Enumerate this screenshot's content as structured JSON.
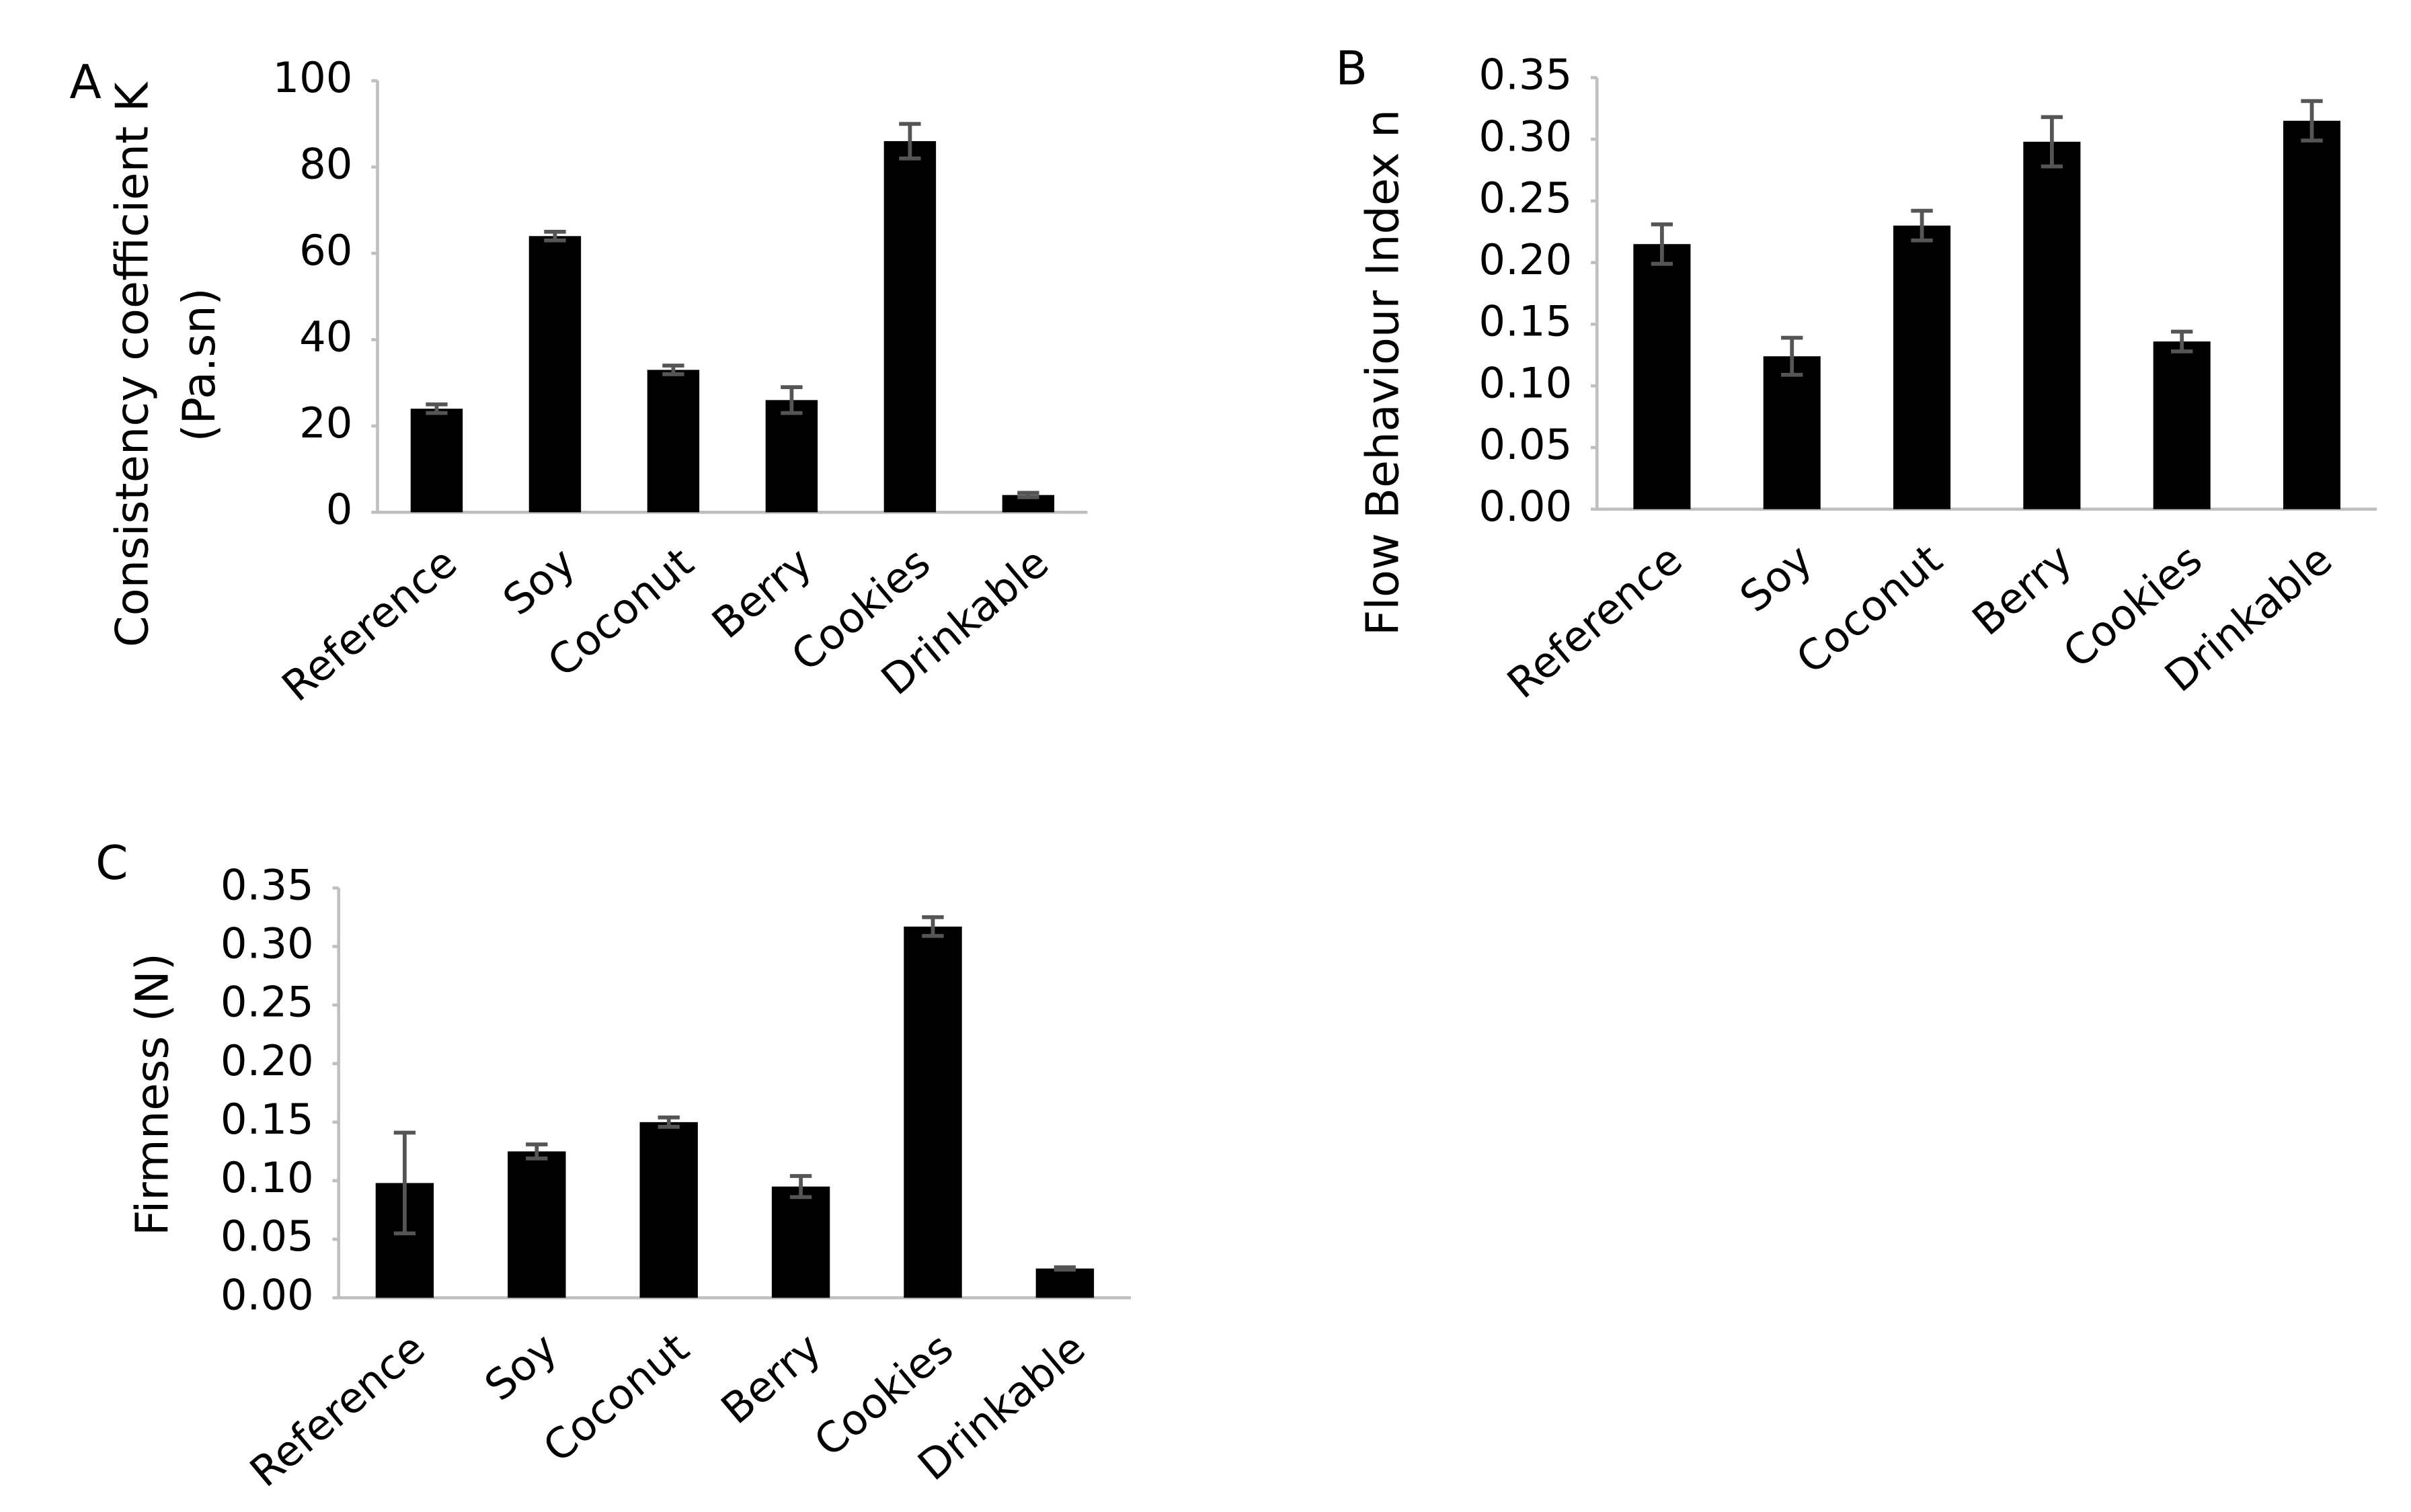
{
  "chart_data": [
    {
      "type": "bar",
      "panel": "A",
      "y_label": [
        "Consistency coefficient K",
        "(Pa.sn)"
      ],
      "categories": [
        "Reference",
        "Soy",
        "Coconut",
        "Berry",
        "Cookies",
        "Drinkable"
      ],
      "values": [
        24,
        64,
        33,
        26,
        86,
        4
      ],
      "errors": [
        1,
        1,
        1,
        3,
        4,
        0.5
      ],
      "color": "#000000",
      "error_color": "#555555",
      "ylim": [
        0,
        100
      ],
      "yticks": [
        0,
        20,
        40,
        60,
        80,
        100
      ]
    },
    {
      "type": "bar",
      "panel": "B",
      "y_label": [
        "Flow Behaviour Index n"
      ],
      "categories": [
        "Reference",
        "Soy",
        "Coconut",
        "Berry",
        "Cookies",
        "Drinkable"
      ],
      "values": [
        0.215,
        0.124,
        0.23,
        0.298,
        0.136,
        0.315
      ],
      "errors": [
        0.016,
        0.015,
        0.012,
        0.02,
        0.008,
        0.016
      ],
      "color": "#000000",
      "error_color": "#555555",
      "ylim": [
        0,
        0.35
      ],
      "yticks": [
        {
          "value": 0,
          "label": "0.00"
        },
        {
          "value": 0.05,
          "label": "0.05"
        },
        {
          "value": 0.1,
          "label": "0.10"
        },
        {
          "value": 0.15,
          "label": "0.15"
        },
        {
          "value": 0.2,
          "label": "0.20"
        },
        {
          "value": 0.25,
          "label": "0.25"
        },
        {
          "value": 0.3,
          "label": "0.30"
        },
        {
          "value": 0.35,
          "label": "0.35"
        }
      ]
    },
    {
      "type": "bar",
      "panel": "C",
      "y_label": [
        "Firmness (N)"
      ],
      "categories": [
        "Reference",
        "Soy",
        "Coconut",
        "Berry",
        "Cookies",
        "Drinkable"
      ],
      "values": [
        0.098,
        0.125,
        0.15,
        0.095,
        0.317,
        0.025
      ],
      "errors": [
        0.043,
        0.006,
        0.004,
        0.009,
        0.008,
        0.001
      ],
      "color": "#000000",
      "error_color": "#555555",
      "ylim": [
        0,
        0.35
      ],
      "yticks": [
        {
          "value": 0,
          "label": "0.00"
        },
        {
          "value": 0.05,
          "label": "0.05"
        },
        {
          "value": 0.1,
          "label": "0.10"
        },
        {
          "value": 0.15,
          "label": "0.15"
        },
        {
          "value": 0.2,
          "label": "0.20"
        },
        {
          "value": 0.25,
          "label": "0.25"
        },
        {
          "value": 0.3,
          "label": "0.30"
        },
        {
          "value": 0.35,
          "label": "0.35"
        }
      ]
    }
  ]
}
